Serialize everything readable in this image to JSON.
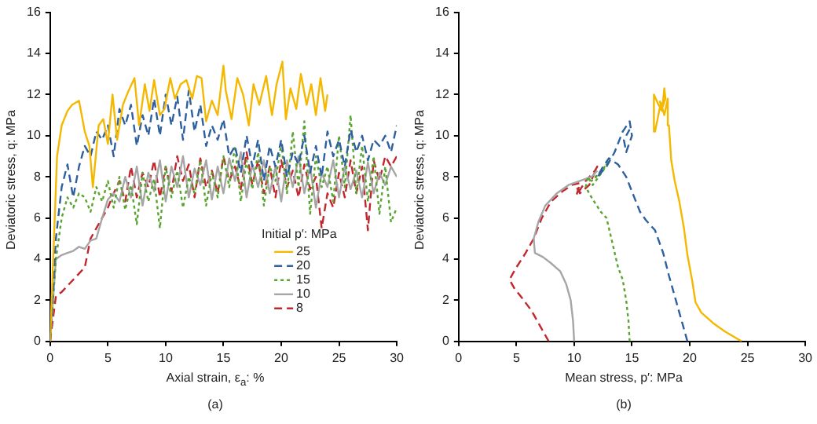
{
  "chart_data": [
    {
      "type": "line",
      "xlabel": "Axial strain, ε$_{a}$: %",
      "ylabel": "Deviatoric stress, q: MPa",
      "legend_title": "Initial p′: MPa",
      "annotations": [
        "(a)"
      ],
      "legend": "bottom right",
      "grid": false,
      "xlim": [
        0,
        30
      ],
      "xticks": [
        0,
        5,
        10,
        15,
        20,
        25,
        30
      ],
      "ylim": [
        0,
        16
      ],
      "yticks": [
        0,
        2,
        4,
        6,
        8,
        10,
        12,
        14,
        16
      ],
      "x": [
        0,
        0.5,
        1,
        1.5,
        2,
        2.5,
        3,
        3.5,
        4,
        4.5,
        5,
        5.5,
        6,
        6.5,
        7,
        7.5,
        8,
        8.5,
        9,
        9.5,
        10,
        10.5,
        11,
        11.5,
        12,
        12.5,
        13,
        13.5,
        14,
        14.5,
        15,
        15.5,
        16,
        16.5,
        17,
        17.5,
        18,
        18.5,
        19,
        19.5,
        20,
        20.5,
        21,
        21.5,
        22,
        22.5,
        23,
        23.5,
        24,
        24.5,
        25,
        25.5,
        26,
        26.5,
        27,
        27.5,
        28,
        28.5,
        29,
        29.5,
        30
      ],
      "series": [
        {
          "name": "25",
          "color": "#f5b800",
          "line_style": "solid",
          "x": [
            0,
            0.3,
            0.6,
            1,
            1.5,
            1.9,
            2.5,
            3,
            3.4,
            3.7,
            4.2,
            4.6,
            5,
            5.4,
            5.8,
            6.3,
            6.8,
            7.3,
            7.7,
            8.2,
            8.6,
            9,
            9.5,
            9.9,
            10.4,
            10.8,
            11.3,
            11.8,
            12.3,
            12.7,
            13.1,
            13.5,
            14,
            14.5,
            15,
            15.2,
            15.7,
            16.2,
            16.7,
            17.2,
            17.6,
            18.1,
            18.7,
            19.2,
            19.6,
            20.1,
            20.4,
            20.8,
            21.3,
            21.7,
            22.2,
            22.6,
            23,
            23.4,
            23.8,
            24
          ],
          "values": [
            0,
            4.5,
            9,
            10.5,
            11.2,
            11.5,
            11.7,
            10.2,
            9.5,
            7.5,
            10.5,
            10.8,
            9.6,
            12,
            9.8,
            11.5,
            12.2,
            12.8,
            10.5,
            12.5,
            11.2,
            12.7,
            11,
            11.3,
            12.8,
            11.8,
            12.5,
            12.7,
            11.8,
            12.9,
            12.8,
            10.7,
            11.7,
            11,
            13.4,
            12.2,
            10.8,
            12.8,
            12,
            10.5,
            12.5,
            11.5,
            12.9,
            11,
            12.5,
            13.6,
            10.8,
            12.3,
            11.3,
            13,
            11.5,
            12.5,
            11,
            12.8,
            11.2,
            12
          ]
        },
        {
          "name": "20",
          "color": "#2e5f9e",
          "line_style": "dashed",
          "values": [
            0,
            5,
            7.5,
            8.6,
            7,
            8.5,
            9.5,
            9,
            10.2,
            9.8,
            10.5,
            9,
            11.3,
            10.5,
            11.5,
            9.5,
            11,
            10,
            11.8,
            10,
            12,
            10.5,
            11.9,
            9.8,
            12.2,
            10.2,
            11.5,
            9.5,
            10.5,
            9.8,
            10.8,
            9,
            9.5,
            8.2,
            10,
            8.5,
            9.8,
            7.8,
            9.5,
            8.5,
            9.8,
            8,
            9.2,
            8.6,
            10,
            8.2,
            9.5,
            8,
            10.2,
            9,
            9.8,
            8.5,
            10.3,
            9.2,
            10,
            8.8,
            9.8,
            9.5,
            10,
            9.2,
            10.5
          ]
        },
        {
          "name": "15",
          "color": "#5aa532",
          "line_style": "dotted",
          "values": [
            0,
            4,
            6,
            7,
            6.5,
            7.2,
            7,
            6.3,
            7.5,
            6.8,
            7.8,
            6.5,
            8,
            6.4,
            7.6,
            5.7,
            8.2,
            6.8,
            7.9,
            5.5,
            8.5,
            7,
            8.3,
            6.5,
            8,
            7.2,
            8.8,
            6.6,
            8.2,
            7,
            9,
            7.5,
            9.5,
            6.8,
            8.8,
            7.4,
            9.2,
            6.6,
            8.5,
            7.8,
            9.6,
            7.2,
            10.2,
            7.5,
            10.7,
            6.2,
            9,
            7.5,
            8.5,
            6.8,
            10,
            7.5,
            11,
            7.2,
            9.5,
            6.8,
            9,
            6.2,
            8.5,
            5.8,
            6.5
          ]
        },
        {
          "name": "10",
          "color": "#a6a6a6",
          "line_style": "solid",
          "values": [
            0,
            4,
            4.2,
            4.3,
            4.4,
            4.6,
            4.5,
            4.9,
            5,
            6,
            6.9,
            7.2,
            6.8,
            8,
            7,
            8.5,
            6.6,
            8.2,
            7.3,
            8.8,
            6.8,
            8.5,
            7.5,
            9,
            7,
            8.4,
            7.6,
            8.8,
            6.9,
            8.5,
            7.2,
            8.9,
            7.8,
            9.2,
            7,
            8.6,
            7.5,
            8.8,
            7.2,
            8.5,
            6.8,
            8.8,
            7.5,
            9,
            7.2,
            8.5,
            6.5,
            8.2,
            7.5,
            8.8,
            7,
            8.5,
            7.4,
            8.3,
            7,
            8.7,
            7.2,
            8.2,
            7.6,
            8.5,
            8
          ]
        },
        {
          "name": "8",
          "color": "#c0282d",
          "line_style": "dashed",
          "values": [
            0,
            2.2,
            2.4,
            2.7,
            3,
            3.3,
            3.6,
            5,
            5.5,
            6,
            6.5,
            7.2,
            7.8,
            6.8,
            8.5,
            7,
            8.2,
            7.5,
            8.8,
            7,
            8.5,
            7.3,
            9,
            7.8,
            8.6,
            7,
            8.9,
            7.5,
            8.3,
            7.2,
            9,
            7.8,
            8.5,
            7.4,
            9.2,
            7.6,
            8.8,
            7.2,
            8.5,
            7,
            8.8,
            7.5,
            8.3,
            7,
            8.6,
            7.4,
            8,
            5.5,
            7.2,
            6.5,
            8.2,
            7,
            8.8,
            7.2,
            8.5,
            5.4,
            8.8,
            7.8,
            9,
            8.5,
            9
          ]
        }
      ]
    },
    {
      "type": "line",
      "xlabel": "Mean stress, p′: MPa",
      "ylabel": "Deviatoric stress, q: MPa",
      "annotations": [
        "(b)"
      ],
      "grid": false,
      "xlim": [
        0,
        30
      ],
      "xticks": [
        0,
        5,
        10,
        15,
        20,
        25,
        30
      ],
      "ylim": [
        0,
        16
      ],
      "yticks": [
        0,
        2,
        4,
        6,
        8,
        10,
        12,
        14,
        16
      ],
      "series": [
        {
          "color": "#f5b800",
          "line_style": "solid",
          "x": [
            24.5,
            23,
            22,
            21,
            20.5,
            20.2,
            19.8,
            19.5,
            19.1,
            18.7,
            18.4,
            18.2,
            18.1,
            17.8,
            17.5,
            17,
            16.9,
            17.3,
            17.6,
            17.8,
            17.9,
            17.6,
            17.4
          ],
          "values": [
            0,
            0.5,
            0.9,
            1.4,
            1.9,
            3,
            4.2,
            5.5,
            6.8,
            7.8,
            8.8,
            10.5,
            11.8,
            11,
            11.6,
            10.2,
            12,
            11.5,
            11.2,
            12.3,
            11.8,
            11.3,
            11.7
          ]
        },
        {
          "color": "#2e5f9e",
          "line_style": "dashed",
          "x": [
            19.8,
            19.3,
            18.8,
            18.2,
            17.7,
            17,
            16.2,
            15.7,
            15.2,
            14.5,
            13.8,
            13,
            12.5,
            12,
            12.8,
            13.5,
            14.2,
            14.8,
            15,
            14.5,
            14.3,
            14.8
          ],
          "values": [
            0,
            1,
            2,
            3.2,
            4.3,
            5.4,
            5.9,
            6.3,
            7,
            8,
            8.6,
            8.9,
            8.5,
            8,
            8.5,
            9.2,
            10.2,
            10.7,
            10,
            9.2,
            9.8,
            10.3
          ]
        },
        {
          "color": "#5aa532",
          "line_style": "dotted",
          "x": [
            14.8,
            14.7,
            14.5,
            14.2,
            13.8,
            13.3,
            12.8,
            12.3,
            11.5,
            11,
            11.2,
            11.6,
            12.5,
            13,
            12.3,
            11.5,
            12
          ],
          "values": [
            0,
            1,
            2,
            3,
            3.6,
            4.8,
            6,
            6.3,
            7,
            7.5,
            8,
            7.6,
            8.3,
            8.8,
            8.2,
            7.8,
            8.1
          ]
        },
        {
          "color": "#a6a6a6",
          "line_style": "solid",
          "x": [
            10,
            9.9,
            9.7,
            9.3,
            8.8,
            8,
            7.3,
            6.6,
            6.5,
            6.9,
            7.5,
            8.5,
            9.5,
            10.5,
            11.5,
            12
          ],
          "values": [
            0,
            1,
            2,
            2.8,
            3.4,
            3.8,
            4.1,
            4.3,
            5,
            5.8,
            6.6,
            7.2,
            7.6,
            7.8,
            8,
            8.3
          ]
        },
        {
          "color": "#c0282d",
          "line_style": "dashed",
          "x": [
            7.8,
            7,
            6.3,
            5.5,
            4.8,
            4.4,
            5,
            5.8,
            6.5,
            7.2,
            8,
            9,
            9.8,
            10.5,
            10.2,
            11,
            11.8,
            12,
            11.3,
            10.5,
            10.2
          ],
          "values": [
            0,
            0.8,
            1.5,
            2.1,
            2.6,
            3,
            3.6,
            4.3,
            5,
            6,
            6.8,
            7.3,
            7.6,
            7.7,
            7.1,
            7.8,
            8.3,
            8.5,
            7.6,
            7.2,
            7.5
          ]
        }
      ]
    }
  ]
}
